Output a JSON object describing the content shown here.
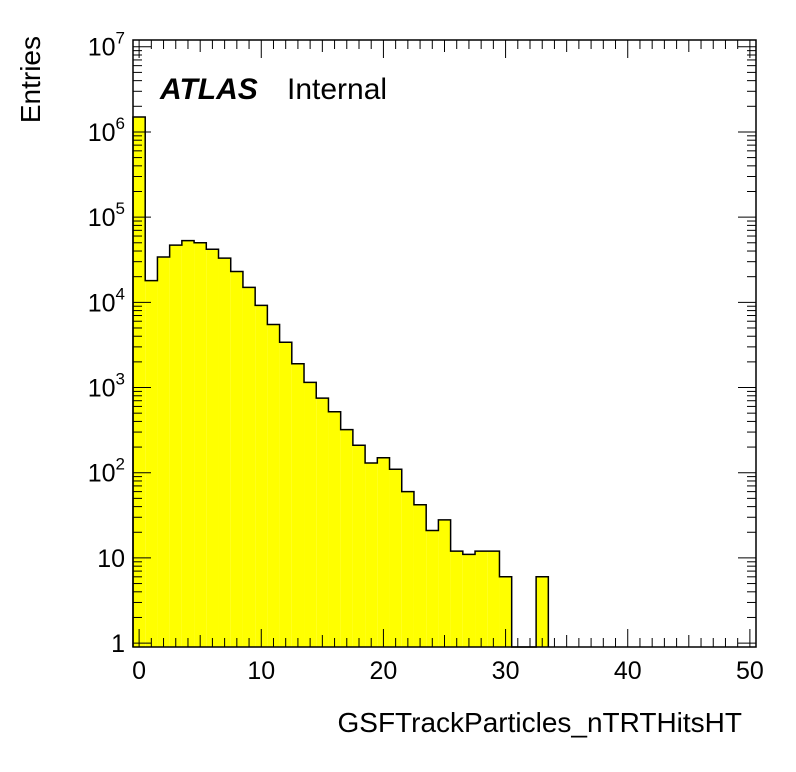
{
  "chart_data": {
    "type": "bar",
    "style": "histogram",
    "fill_color": "#ffff00",
    "edge_color": "#000000",
    "title": "",
    "label": {
      "experiment": "ATLAS",
      "status": "Internal"
    },
    "xlabel": "GSFTrackParticles_nTRTHitsHT",
    "ylabel": "Entries",
    "xlim": [
      -0.5,
      50.5
    ],
    "ylim": [
      0.9,
      12000000
    ],
    "yscale": "log",
    "bin_width": 1,
    "x_ticks": [
      0,
      10,
      20,
      30,
      40,
      50
    ],
    "y_ticks": [
      {
        "base": "1",
        "exp": ""
      },
      {
        "base": "10",
        "exp": ""
      },
      {
        "base": "10",
        "exp": "2"
      },
      {
        "base": "10",
        "exp": "3"
      },
      {
        "base": "10",
        "exp": "4"
      },
      {
        "base": "10",
        "exp": "5"
      },
      {
        "base": "10",
        "exp": "6"
      },
      {
        "base": "10",
        "exp": "7"
      }
    ],
    "y_tick_values": [
      1,
      10,
      100,
      1000,
      10000,
      100000,
      1000000,
      10000000
    ],
    "grid": false,
    "bins": [
      {
        "x": 0,
        "value": 1500000
      },
      {
        "x": 1,
        "value": 18000
      },
      {
        "x": 2,
        "value": 34000
      },
      {
        "x": 3,
        "value": 47000
      },
      {
        "x": 4,
        "value": 53000
      },
      {
        "x": 5,
        "value": 50000
      },
      {
        "x": 6,
        "value": 42000
      },
      {
        "x": 7,
        "value": 33000
      },
      {
        "x": 8,
        "value": 23000
      },
      {
        "x": 9,
        "value": 15000
      },
      {
        "x": 10,
        "value": 9200
      },
      {
        "x": 11,
        "value": 5500
      },
      {
        "x": 12,
        "value": 3400
      },
      {
        "x": 13,
        "value": 1900
      },
      {
        "x": 14,
        "value": 1150
      },
      {
        "x": 15,
        "value": 750
      },
      {
        "x": 16,
        "value": 520
      },
      {
        "x": 17,
        "value": 320
      },
      {
        "x": 18,
        "value": 210
      },
      {
        "x": 19,
        "value": 130
      },
      {
        "x": 20,
        "value": 150
      },
      {
        "x": 21,
        "value": 110
      },
      {
        "x": 22,
        "value": 60
      },
      {
        "x": 23,
        "value": 42
      },
      {
        "x": 24,
        "value": 21
      },
      {
        "x": 25,
        "value": 28
      },
      {
        "x": 26,
        "value": 12
      },
      {
        "x": 27,
        "value": 11
      },
      {
        "x": 28,
        "value": 12
      },
      {
        "x": 29,
        "value": 12
      },
      {
        "x": 30,
        "value": 6
      },
      {
        "x": 31,
        "value": 0
      },
      {
        "x": 32,
        "value": 0
      },
      {
        "x": 33,
        "value": 6
      }
    ]
  }
}
